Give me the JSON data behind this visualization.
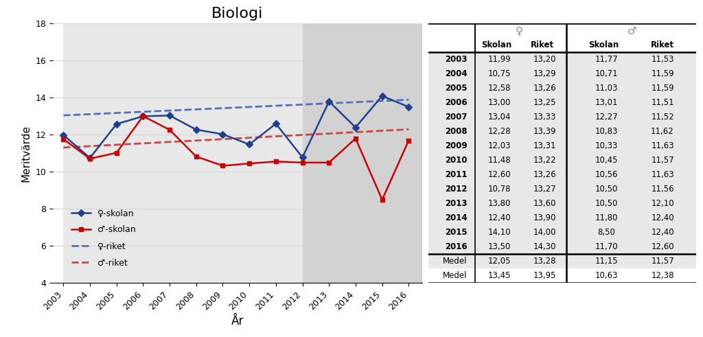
{
  "title": "Biologi",
  "xlabel": "År",
  "ylabel": "Meritvärde",
  "years": [
    2003,
    2004,
    2005,
    2006,
    2007,
    2008,
    2009,
    2010,
    2011,
    2012,
    2013,
    2014,
    2015,
    2016
  ],
  "flicka_skolan": [
    11.99,
    10.75,
    12.58,
    13.0,
    13.04,
    12.28,
    12.03,
    11.48,
    12.6,
    10.78,
    13.8,
    12.4,
    14.1,
    13.5
  ],
  "flicka_riket": [
    13.2,
    13.29,
    13.26,
    13.25,
    13.33,
    13.39,
    13.31,
    13.22,
    13.26,
    13.27,
    13.6,
    13.9,
    14.0,
    14.3
  ],
  "pojke_skolan": [
    11.77,
    10.71,
    11.03,
    13.01,
    12.27,
    10.83,
    10.33,
    10.45,
    10.56,
    10.5,
    10.5,
    11.8,
    8.5,
    11.7
  ],
  "pojke_riket": [
    11.53,
    11.59,
    11.59,
    11.51,
    11.52,
    11.62,
    11.63,
    11.57,
    11.63,
    11.56,
    12.1,
    12.4,
    12.4,
    12.6
  ],
  "ylim": [
    4,
    18
  ],
  "yticks": [
    4,
    6,
    8,
    10,
    12,
    14,
    16,
    18
  ],
  "bg_lpo94": "#e8e8e8",
  "bg_lgr11": "#d2d2d2",
  "blue_solid_color": "#1f3f8f",
  "red_solid_color": "#cc0000",
  "blue_dashed_color": "#4f6fbf",
  "red_dashed_color": "#cc4444",
  "table_rows": [
    "2003",
    "2004",
    "2005",
    "2006",
    "2007",
    "2008",
    "2009",
    "2010",
    "2011",
    "2012",
    "2013",
    "2014",
    "2015",
    "2016"
  ],
  "table_flicka_skolan": [
    "11,99",
    "10,75",
    "12,58",
    "13,00",
    "13,04",
    "12,28",
    "12,03",
    "11,48",
    "12,60",
    "10,78",
    "13,80",
    "12,40",
    "14,10",
    "13,50"
  ],
  "table_flicka_riket": [
    "13,20",
    "13,29",
    "13,26",
    "13,25",
    "13,33",
    "13,39",
    "13,31",
    "13,22",
    "13,26",
    "13,27",
    "13,60",
    "13,90",
    "14,00",
    "14,30"
  ],
  "table_pojke_skolan": [
    "11,77",
    "10,71",
    "11,03",
    "13,01",
    "12,27",
    "10,83",
    "10,33",
    "10,45",
    "10,56",
    "10,50",
    "10,50",
    "11,80",
    "8,50",
    "11,70"
  ],
  "table_pojke_riket": [
    "11,53",
    "11,59",
    "11,59",
    "11,51",
    "11,52",
    "11,62",
    "11,63",
    "11,57",
    "11,63",
    "11,56",
    "12,10",
    "12,40",
    "12,40",
    "12,60"
  ],
  "medel1_label": "Medel",
  "medel2_label": "Medel",
  "medel1_flicka_skolan": "12,05",
  "medel1_flicka_riket": "13,28",
  "medel1_pojke_skolan": "11,15",
  "medel1_pojke_riket": "11,57",
  "medel2_flicka_skolan": "13,45",
  "medel2_flicka_riket": "13,95",
  "medel2_pojke_skolan": "10,63",
  "medel2_pojke_riket": "12,38"
}
